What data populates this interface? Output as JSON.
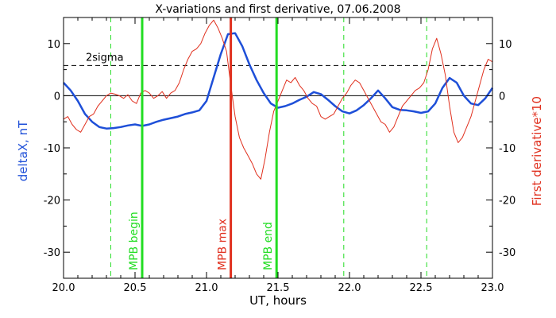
{
  "chart_data": {
    "type": "line",
    "title": "X-variations and first derivative, 07.06.2008",
    "xlabel": "UT, hours",
    "ylabel_left": "deltaX, nT",
    "ylabel_right": "First derivative*10",
    "xlim": [
      20.0,
      23.0
    ],
    "ylim": [
      -35,
      15
    ],
    "x_ticks": [
      20.0,
      20.5,
      21.0,
      21.5,
      22.0,
      22.5,
      23.0
    ],
    "x_tick_labels": [
      "20.0",
      "20.5",
      "21.0",
      "21.5",
      "22.0",
      "22.5",
      "23.0"
    ],
    "y_ticks": [
      10,
      0,
      -10,
      -20,
      -30
    ],
    "y_tick_labels": [
      "10",
      "0",
      "-10",
      "-20",
      "-30"
    ],
    "colors": {
      "deltaX": "#1e4fd8",
      "derivative": "#e0301e",
      "markers": "#22dd22",
      "threshold": "#000000",
      "axis": "#000000"
    },
    "threshold": {
      "label": "2sigma",
      "y": 5.8
    },
    "zero_line": 0,
    "dashed_green_lines": [
      20.33,
      21.96,
      22.54
    ],
    "markers": [
      {
        "label": "MPB begin",
        "x": 20.55,
        "color": "#22dd22"
      },
      {
        "label": "MPB max",
        "x": 21.17,
        "color": "#e0301e"
      },
      {
        "label": "MPB end",
        "x": 21.49,
        "color": "#22dd22"
      }
    ],
    "series": [
      {
        "name": "deltaX, nT",
        "color": "#1e4fd8",
        "x": [
          20.0,
          20.05,
          20.1,
          20.15,
          20.2,
          20.25,
          20.3,
          20.35,
          20.4,
          20.45,
          20.5,
          20.55,
          20.6,
          20.65,
          20.7,
          20.75,
          20.8,
          20.85,
          20.9,
          20.95,
          21.0,
          21.05,
          21.1,
          21.15,
          21.2,
          21.25,
          21.3,
          21.35,
          21.4,
          21.45,
          21.5,
          21.55,
          21.6,
          21.65,
          21.7,
          21.75,
          21.8,
          21.85,
          21.9,
          21.95,
          22.0,
          22.05,
          22.1,
          22.15,
          22.2,
          22.25,
          22.3,
          22.35,
          22.4,
          22.45,
          22.5,
          22.55,
          22.6,
          22.65,
          22.7,
          22.75,
          22.8,
          22.85,
          22.9,
          22.95,
          23.0
        ],
        "values": [
          2.5,
          1.0,
          -1.0,
          -3.5,
          -5.0,
          -6.0,
          -6.3,
          -6.2,
          -6.0,
          -5.7,
          -5.5,
          -5.8,
          -5.5,
          -5.0,
          -4.6,
          -4.3,
          -4.0,
          -3.5,
          -3.2,
          -2.8,
          -1.0,
          3.5,
          8.0,
          11.8,
          12.0,
          9.5,
          6.0,
          3.0,
          0.5,
          -1.5,
          -2.3,
          -2.0,
          -1.5,
          -0.8,
          -0.2,
          0.7,
          0.3,
          -0.8,
          -2.0,
          -3.0,
          -3.4,
          -2.8,
          -1.8,
          -0.5,
          1.0,
          -0.5,
          -2.2,
          -2.7,
          -2.8,
          -3.0,
          -3.3,
          -3.0,
          -1.5,
          1.5,
          3.4,
          2.5,
          0.0,
          -1.5,
          -1.8,
          -0.5,
          1.5
        ]
      },
      {
        "name": "First derivative*10",
        "color": "#e0301e",
        "x": [
          20.0,
          20.03,
          20.06,
          20.09,
          20.12,
          20.15,
          20.18,
          20.21,
          20.24,
          20.27,
          20.3,
          20.33,
          20.36,
          20.39,
          20.42,
          20.45,
          20.48,
          20.51,
          20.54,
          20.57,
          20.6,
          20.63,
          20.66,
          20.69,
          20.72,
          20.75,
          20.78,
          20.81,
          20.84,
          20.87,
          20.9,
          20.93,
          20.96,
          20.99,
          21.02,
          21.05,
          21.08,
          21.11,
          21.14,
          21.17,
          21.2,
          21.23,
          21.26,
          21.29,
          21.32,
          21.35,
          21.38,
          21.41,
          21.44,
          21.47,
          21.5,
          21.53,
          21.56,
          21.59,
          21.62,
          21.65,
          21.68,
          21.71,
          21.74,
          21.77,
          21.8,
          21.83,
          21.86,
          21.89,
          21.92,
          21.95,
          21.98,
          22.01,
          22.04,
          22.07,
          22.1,
          22.13,
          22.16,
          22.19,
          22.22,
          22.25,
          22.28,
          22.31,
          22.34,
          22.37,
          22.4,
          22.43,
          22.46,
          22.49,
          22.52,
          22.55,
          22.58,
          22.61,
          22.64,
          22.67,
          22.7,
          22.73,
          22.76,
          22.79,
          22.82,
          22.85,
          22.88,
          22.91,
          22.94,
          22.97,
          23.0
        ],
        "values": [
          -4.5,
          -4.0,
          -5.5,
          -6.5,
          -7.0,
          -5.5,
          -4.0,
          -3.5,
          -2.0,
          -1.0,
          0.0,
          0.5,
          0.3,
          0.0,
          -0.5,
          0.2,
          -1.0,
          -1.5,
          0.5,
          1.0,
          0.5,
          -0.5,
          0.0,
          0.8,
          -0.5,
          0.5,
          1.0,
          2.5,
          5.0,
          7.0,
          8.5,
          9.0,
          10.0,
          12.0,
          13.5,
          14.5,
          13.0,
          11.0,
          8.5,
          2.0,
          -4.0,
          -8.0,
          -10.0,
          -11.5,
          -13.0,
          -15.0,
          -16.0,
          -12.0,
          -7.0,
          -3.0,
          -1.0,
          1.0,
          3.0,
          2.5,
          3.5,
          2.0,
          1.0,
          -0.5,
          -1.5,
          -2.0,
          -4.0,
          -4.5,
          -4.0,
          -3.5,
          -2.0,
          -0.5,
          0.5,
          2.0,
          3.0,
          2.5,
          1.0,
          -0.5,
          -2.0,
          -3.5,
          -5.0,
          -5.5,
          -7.0,
          -6.0,
          -4.0,
          -2.0,
          -1.0,
          0.0,
          1.0,
          1.5,
          2.5,
          5.0,
          9.0,
          11.0,
          8.0,
          4.0,
          -2.0,
          -7.0,
          -9.0,
          -8.0,
          -6.0,
          -4.0,
          -1.0,
          2.0,
          5.0,
          7.0,
          6.5
        ]
      }
    ]
  }
}
